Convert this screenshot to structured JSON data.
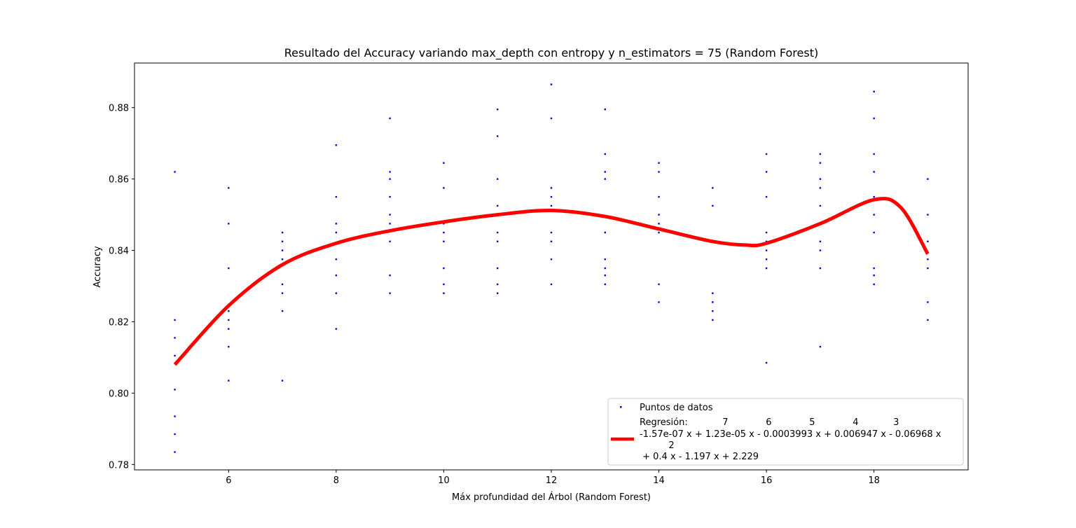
{
  "chart_data": {
    "type": "scatter",
    "title": "Resultado del Accuracy variando max_depth con entropy y n_estimators = 75 (Random Forest)",
    "xlabel": "Máx profundidad del Árbol (Random Forest)",
    "ylabel": "Accuracy",
    "xlim": [
      4.25,
      19.75
    ],
    "ylim": [
      0.7785,
      0.8925
    ],
    "xticks": [
      6,
      8,
      10,
      12,
      14,
      16,
      18
    ],
    "xtick_labels": [
      "6",
      "8",
      "10",
      "12",
      "14",
      "16",
      "18"
    ],
    "yticks": [
      0.78,
      0.8,
      0.82,
      0.84,
      0.86,
      0.88
    ],
    "ytick_labels": [
      "0.78",
      "0.80",
      "0.82",
      "0.84",
      "0.86",
      "0.88"
    ],
    "grid": false,
    "legend_position": "lower-right",
    "series": [
      {
        "name": "Puntos de datos",
        "kind": "scatter",
        "color": "#0000ff",
        "points": [
          [
            5,
            0.862
          ],
          [
            5,
            0.8205
          ],
          [
            5,
            0.8155
          ],
          [
            5,
            0.8105
          ],
          [
            5,
            0.801
          ],
          [
            5,
            0.7935
          ],
          [
            5,
            0.7885
          ],
          [
            5,
            0.7835
          ],
          [
            6,
            0.8575
          ],
          [
            6,
            0.8475
          ],
          [
            6,
            0.835
          ],
          [
            6,
            0.823
          ],
          [
            6,
            0.8205
          ],
          [
            6,
            0.818
          ],
          [
            6,
            0.813
          ],
          [
            6,
            0.8035
          ],
          [
            7,
            0.845
          ],
          [
            7,
            0.8425
          ],
          [
            7,
            0.84
          ],
          [
            7,
            0.8375
          ],
          [
            7,
            0.8305
          ],
          [
            7,
            0.828
          ],
          [
            7,
            0.823
          ],
          [
            7,
            0.8035
          ],
          [
            8,
            0.8695
          ],
          [
            8,
            0.855
          ],
          [
            8,
            0.8475
          ],
          [
            8,
            0.845
          ],
          [
            8,
            0.8375
          ],
          [
            8,
            0.833
          ],
          [
            8,
            0.828
          ],
          [
            8,
            0.818
          ],
          [
            9,
            0.877
          ],
          [
            9,
            0.862
          ],
          [
            9,
            0.86
          ],
          [
            9,
            0.855
          ],
          [
            9,
            0.85
          ],
          [
            9,
            0.8475
          ],
          [
            9,
            0.8425
          ],
          [
            9,
            0.833
          ],
          [
            9,
            0.828
          ],
          [
            10,
            0.8645
          ],
          [
            10,
            0.8575
          ],
          [
            10,
            0.8475
          ],
          [
            10,
            0.845
          ],
          [
            10,
            0.8425
          ],
          [
            10,
            0.835
          ],
          [
            10,
            0.8305
          ],
          [
            10,
            0.828
          ],
          [
            11,
            0.8795
          ],
          [
            11,
            0.872
          ],
          [
            11,
            0.86
          ],
          [
            11,
            0.8525
          ],
          [
            11,
            0.85
          ],
          [
            11,
            0.845
          ],
          [
            11,
            0.8425
          ],
          [
            11,
            0.835
          ],
          [
            11,
            0.8305
          ],
          [
            11,
            0.828
          ],
          [
            12,
            0.8865
          ],
          [
            12,
            0.877
          ],
          [
            12,
            0.8575
          ],
          [
            12,
            0.855
          ],
          [
            12,
            0.8525
          ],
          [
            12,
            0.845
          ],
          [
            12,
            0.8425
          ],
          [
            12,
            0.8375
          ],
          [
            12,
            0.8305
          ],
          [
            13,
            0.8795
          ],
          [
            13,
            0.867
          ],
          [
            13,
            0.862
          ],
          [
            13,
            0.86
          ],
          [
            13,
            0.845
          ],
          [
            13,
            0.8375
          ],
          [
            13,
            0.835
          ],
          [
            13,
            0.833
          ],
          [
            13,
            0.8305
          ],
          [
            14,
            0.8645
          ],
          [
            14,
            0.862
          ],
          [
            14,
            0.855
          ],
          [
            14,
            0.85
          ],
          [
            14,
            0.8475
          ],
          [
            14,
            0.845
          ],
          [
            14,
            0.8305
          ],
          [
            14,
            0.8255
          ],
          [
            15,
            0.8575
          ],
          [
            15,
            0.8525
          ],
          [
            15,
            0.8425
          ],
          [
            15,
            0.828
          ],
          [
            15,
            0.8255
          ],
          [
            15,
            0.823
          ],
          [
            15,
            0.8205
          ],
          [
            16,
            0.867
          ],
          [
            16,
            0.862
          ],
          [
            16,
            0.855
          ],
          [
            16,
            0.845
          ],
          [
            16,
            0.8425
          ],
          [
            16,
            0.84
          ],
          [
            16,
            0.8375
          ],
          [
            16,
            0.835
          ],
          [
            16,
            0.8085
          ],
          [
            17,
            0.867
          ],
          [
            17,
            0.8645
          ],
          [
            17,
            0.86
          ],
          [
            17,
            0.8575
          ],
          [
            17,
            0.8525
          ],
          [
            17,
            0.8425
          ],
          [
            17,
            0.84
          ],
          [
            17,
            0.835
          ],
          [
            17,
            0.813
          ],
          [
            18,
            0.8845
          ],
          [
            18,
            0.877
          ],
          [
            18,
            0.867
          ],
          [
            18,
            0.862
          ],
          [
            18,
            0.855
          ],
          [
            18,
            0.85
          ],
          [
            18,
            0.845
          ],
          [
            18,
            0.835
          ],
          [
            18,
            0.833
          ],
          [
            18,
            0.8305
          ],
          [
            19,
            0.86
          ],
          [
            19,
            0.85
          ],
          [
            19,
            0.8425
          ],
          [
            19,
            0.8375
          ],
          [
            19,
            0.835
          ],
          [
            19,
            0.8255
          ],
          [
            19,
            0.8205
          ]
        ]
      },
      {
        "name": "Regresión",
        "kind": "line",
        "color": "#ff0000",
        "polynomial_coefficients": [
          -1.57e-07,
          1.23e-05,
          -0.0003993,
          0.006947,
          -0.06968,
          0.4,
          -1.197,
          2.229
        ],
        "x_range": [
          5,
          19
        ],
        "points": [
          [
            5,
            0.808
          ],
          [
            6,
            0.8245
          ],
          [
            7,
            0.836
          ],
          [
            8,
            0.842
          ],
          [
            9,
            0.8455
          ],
          [
            10,
            0.848
          ],
          [
            11,
            0.85
          ],
          [
            12,
            0.8512
          ],
          [
            13,
            0.8495
          ],
          [
            14,
            0.846
          ],
          [
            15,
            0.8425
          ],
          [
            15.6,
            0.8415
          ],
          [
            16,
            0.842
          ],
          [
            17,
            0.8475
          ],
          [
            18,
            0.8542
          ],
          [
            18.5,
            0.852
          ],
          [
            19,
            0.839
          ]
        ]
      }
    ],
    "legend": {
      "entries": [
        {
          "label": "Puntos de datos"
        },
        {
          "label_lines": [
            "Regresión:            7             6             5             4            3",
            "-1.57e-07 x + 1.23e-05 x - 0.0003993 x + 0.006947 x - 0.06968 x",
            "          2",
            " + 0.4 x - 1.197 x + 2.229"
          ]
        }
      ]
    }
  }
}
